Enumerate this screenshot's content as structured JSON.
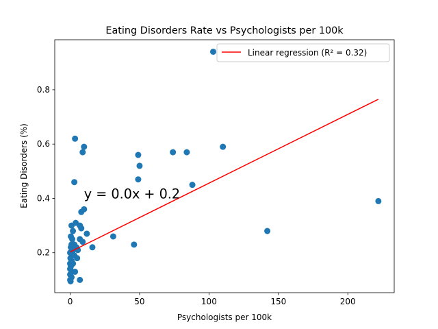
{
  "chart_data": {
    "type": "scatter",
    "title": "Eating Disorders Rate vs Psychologists per 100k",
    "xlabel": "Psychologists per 100k",
    "ylabel": "Eating Disorders (%)",
    "xlim": [
      -11.1,
      233.4
    ],
    "ylim": [
      0.053,
      0.984
    ],
    "xticks": [
      "0",
      "50",
      "100",
      "150",
      "200"
    ],
    "xtick_values": [
      0,
      50,
      100,
      150,
      200
    ],
    "yticks": [
      "0.2",
      "0.4",
      "0.6",
      "0.8"
    ],
    "ytick_values": [
      0.2,
      0.4,
      0.6,
      0.8
    ],
    "grid": false,
    "legend": {
      "position": "top-right",
      "entries": [
        "Linear regression (R² = 0.32)"
      ]
    },
    "annotation": {
      "text": "y = 0.0x + 0.2",
      "x": 10,
      "y": 0.4
    },
    "colors": {
      "points": "#1f77b4",
      "regression": "#ff0000"
    },
    "series": [
      {
        "type": "scatter",
        "points": [
          [
            103,
            0.94
          ],
          [
            3.5,
            0.62
          ],
          [
            10,
            0.59
          ],
          [
            9,
            0.57
          ],
          [
            49,
            0.56
          ],
          [
            74,
            0.57
          ],
          [
            84,
            0.57
          ],
          [
            110,
            0.59
          ],
          [
            50,
            0.52
          ],
          [
            49,
            0.47
          ],
          [
            88,
            0.45
          ],
          [
            3,
            0.46
          ],
          [
            10,
            0.36
          ],
          [
            8,
            0.35
          ],
          [
            222,
            0.39
          ],
          [
            4,
            0.31
          ],
          [
            7,
            0.3
          ],
          [
            8,
            0.29
          ],
          [
            1,
            0.3
          ],
          [
            2,
            0.28
          ],
          [
            12,
            0.27
          ],
          [
            142,
            0.28
          ],
          [
            0.5,
            0.26
          ],
          [
            1.5,
            0.25
          ],
          [
            7,
            0.25
          ],
          [
            9,
            0.24
          ],
          [
            31,
            0.26
          ],
          [
            16,
            0.22
          ],
          [
            46,
            0.23
          ],
          [
            1,
            0.23
          ],
          [
            3,
            0.23
          ],
          [
            4.5,
            0.22
          ],
          [
            0.5,
            0.22
          ],
          [
            2,
            0.21
          ],
          [
            5.5,
            0.21
          ],
          [
            0,
            0.2
          ],
          [
            1.5,
            0.2
          ],
          [
            3,
            0.19
          ],
          [
            5,
            0.18
          ],
          [
            1,
            0.17
          ],
          [
            0,
            0.16
          ],
          [
            2,
            0.16
          ],
          [
            0.5,
            0.15
          ],
          [
            0,
            0.14
          ],
          [
            1.5,
            0.13
          ],
          [
            3.5,
            0.13
          ],
          [
            0,
            0.12
          ],
          [
            1,
            0.11
          ],
          [
            0,
            0.1
          ],
          [
            7,
            0.1
          ],
          [
            0.3,
            0.095
          ],
          [
            0.2,
            0.18
          ]
        ]
      },
      {
        "type": "line",
        "name": "Linear regression (R² = 0.32)",
        "points": [
          [
            0,
            0.203
          ],
          [
            222,
            0.765
          ]
        ]
      }
    ]
  }
}
